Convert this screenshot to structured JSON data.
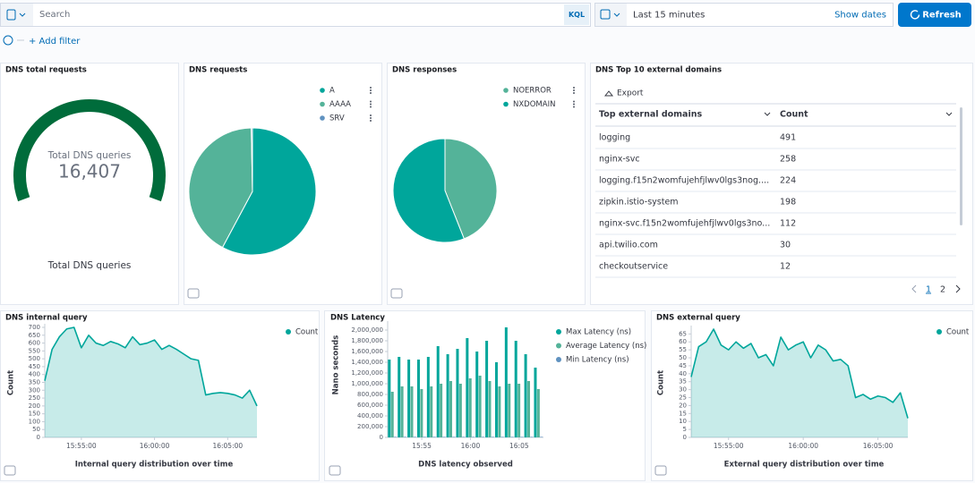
{
  "query_bar": {
    "placeholder": "Search",
    "language": "KQL"
  },
  "time_picker": {
    "range": "Last 15 minutes",
    "show_dates": "Show dates"
  },
  "refresh": "Refresh",
  "add_filter": "+ Add filter",
  "chart_data": [
    {
      "type": "gauge",
      "title": "DNS total requests",
      "values": [
        16407
      ],
      "value_labels": [
        "16,407"
      ],
      "label": "Total DNS queries",
      "footer": "Total DNS queries",
      "color": "#006c3b"
    },
    {
      "type": "pie",
      "title": "DNS requests",
      "categories": [
        "A",
        "AAAA",
        "SRV"
      ],
      "values": [
        58,
        42,
        0.3
      ],
      "colors": [
        "#00a69b",
        "#54b399",
        "#6092c0"
      ]
    },
    {
      "type": "pie",
      "title": "DNS responses",
      "categories": [
        "NOERROR",
        "NXDOMAIN"
      ],
      "values": [
        44,
        56
      ],
      "colors": [
        "#54b399",
        "#00a69b"
      ]
    },
    {
      "type": "area",
      "title": "DNS internal query",
      "x_label": "Internal query distribution over time",
      "y_label": "Count",
      "x": [
        "15:52:30",
        "15:53:00",
        "15:53:30",
        "15:54:00",
        "15:54:30",
        "15:55:00",
        "15:55:30",
        "15:56:00",
        "15:56:30",
        "15:57:00",
        "15:57:30",
        "15:58:00",
        "15:58:30",
        "15:59:00",
        "15:59:30",
        "16:00:00",
        "16:00:30",
        "16:01:00",
        "16:01:30",
        "16:02:00",
        "16:02:30",
        "16:03:00",
        "16:03:30",
        "16:04:00",
        "16:04:30",
        "16:05:00",
        "16:05:30",
        "16:06:00",
        "16:06:30",
        "16:07:00"
      ],
      "series": [
        {
          "name": "Count",
          "color": "#00a69b",
          "values": [
            360,
            560,
            640,
            690,
            700,
            570,
            650,
            600,
            585,
            610,
            595,
            570,
            640,
            590,
            600,
            620,
            560,
            585,
            560,
            530,
            500,
            490,
            270,
            280,
            285,
            280,
            270,
            250,
            300,
            200
          ]
        }
      ],
      "xlim": [
        "15:52:30",
        "16:07:00"
      ],
      "xticks": [
        "15:55:00",
        "16:00:00",
        "16:05:00"
      ],
      "ylim": [
        0,
        700
      ],
      "yticks": [
        0,
        50,
        100,
        150,
        200,
        250,
        300,
        350,
        400,
        450,
        500,
        550,
        600,
        650,
        700
      ]
    },
    {
      "type": "bar",
      "title": "DNS Latency",
      "x_label": "DNS latency observed",
      "y_label": "Nano seconds",
      "x": [
        "15:52",
        "15:53",
        "15:54",
        "15:55",
        "15:56",
        "15:57",
        "15:58",
        "15:59",
        "16:00",
        "16:01",
        "16:02",
        "16:03",
        "16:04",
        "16:05",
        "16:06",
        "16:07"
      ],
      "series": [
        {
          "name": "Max Latency (ns)",
          "color": "#00a69b",
          "values": [
            1450000,
            1500000,
            1450000,
            1450000,
            1500000,
            1700000,
            1550000,
            1650000,
            1850000,
            1600000,
            1800000,
            1400000,
            2050000,
            1800000,
            1550000,
            1300000
          ]
        },
        {
          "name": "Average Latency (ns)",
          "color": "#54b399",
          "values": [
            850000,
            950000,
            950000,
            900000,
            950000,
            1000000,
            1050000,
            1000000,
            1100000,
            1150000,
            1050000,
            950000,
            1000000,
            1000000,
            1050000,
            900000
          ]
        },
        {
          "name": "Min Latency (ns)",
          "color": "#6092c0",
          "values": [
            10000,
            10000,
            10000,
            10000,
            10000,
            10000,
            10000,
            10000,
            10000,
            10000,
            10000,
            10000,
            10000,
            10000,
            10000,
            10000
          ]
        }
      ],
      "xlim": [
        "15:51:30",
        "16:07:30"
      ],
      "xticks": [
        "15:55",
        "16:00",
        "16:05"
      ],
      "ylim": [
        0,
        2100000
      ],
      "yticks": [
        0,
        {
          "value": 200000,
          "label": "200,000"
        },
        {
          "value": 400000,
          "label": "400,000"
        },
        {
          "value": 600000,
          "label": "600,000"
        },
        {
          "value": 800000,
          "label": "800,000"
        },
        {
          "value": 1000000,
          "label": "1,000,000"
        },
        {
          "value": 1200000,
          "label": "1,200,000"
        },
        {
          "value": 1400000,
          "label": "1,400,000"
        },
        {
          "value": 1600000,
          "label": "1,600,000"
        },
        {
          "value": 1800000,
          "label": "1,800,000"
        },
        {
          "value": 2000000,
          "label": "2,000,000"
        }
      ]
    },
    {
      "type": "area",
      "title": "DNS external query",
      "x_label": "External query distribution over time",
      "y_label": "Count",
      "x": [
        "15:52:30",
        "15:53:00",
        "15:53:30",
        "15:54:00",
        "15:54:30",
        "15:55:00",
        "15:55:30",
        "15:56:00",
        "15:56:30",
        "15:57:00",
        "15:57:30",
        "15:58:00",
        "15:58:30",
        "15:59:00",
        "15:59:30",
        "16:00:00",
        "16:00:30",
        "16:01:00",
        "16:01:30",
        "16:02:00",
        "16:02:30",
        "16:03:00",
        "16:03:30",
        "16:04:00",
        "16:04:30",
        "16:05:00",
        "16:05:30",
        "16:06:00",
        "16:06:30",
        "16:07:00"
      ],
      "series": [
        {
          "name": "Count",
          "color": "#00a69b",
          "values": [
            38,
            57,
            60,
            68,
            58,
            55,
            60,
            56,
            59,
            50,
            52,
            45,
            63,
            55,
            58,
            60,
            50,
            58,
            55,
            48,
            49,
            45,
            25,
            27,
            24,
            26,
            25,
            22,
            28,
            12
          ]
        }
      ],
      "xlim": [
        "15:52:30",
        "16:07:00"
      ],
      "xticks": [
        "15:55:00",
        "16:00:00",
        "16:05:00"
      ],
      "ylim": [
        0,
        68
      ],
      "yticks": [
        0,
        5,
        10,
        15,
        20,
        25,
        30,
        35,
        40,
        45,
        50,
        55,
        60,
        65
      ]
    }
  ],
  "table": {
    "title": "DNS Top 10 external domains",
    "export": "Export",
    "columns": [
      "Top external domains",
      "Count"
    ],
    "rows": [
      [
        "logging",
        491
      ],
      [
        "nginx-svc",
        258
      ],
      [
        "logging.f15n2womfujehfjlwv0lgs3nog....",
        224
      ],
      [
        "zipkin.istio-system",
        198
      ],
      [
        "nginx-svc.f15n2womfujehfjlwv0lgs3no...",
        112
      ],
      [
        "api.twilio.com",
        30
      ],
      [
        "checkoutservice",
        12
      ]
    ],
    "pages": [
      1,
      2
    ]
  }
}
